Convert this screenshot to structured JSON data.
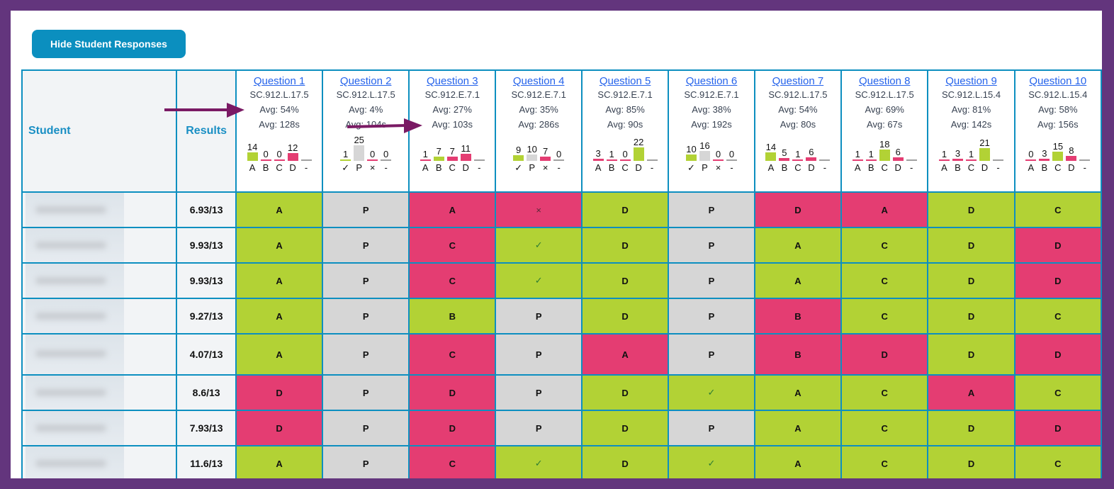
{
  "toolbar": {
    "hide_label": "Hide Student Responses"
  },
  "table": {
    "student_header": "Student",
    "results_header": "Results",
    "colors": {
      "correct": "#b2d235",
      "incorrect": "#e43d72",
      "pending": "#d6d6d6",
      "none": "#a0a0a0"
    },
    "questions": [
      {
        "title": "Question 1",
        "standard": "SC.912.L.17.5",
        "avg_score": "Avg: 54%",
        "avg_time": "Avg: 128s",
        "type": "mc",
        "correct": "A",
        "options": [
          "A",
          "B",
          "C",
          "D",
          "-"
        ],
        "counts": [
          14,
          0,
          0,
          12,
          null
        ]
      },
      {
        "title": "Question 2",
        "standard": "SC.912.L.17.5",
        "avg_score": "Avg: 4%",
        "avg_time": "Avg: 104s",
        "type": "open",
        "options": [
          "✓",
          "P",
          "×",
          "-"
        ],
        "counts": [
          1,
          25,
          0,
          0
        ]
      },
      {
        "title": "Question 3",
        "standard": "SC.912.E.7.1",
        "avg_score": "Avg: 27%",
        "avg_time": "Avg: 103s",
        "type": "mc",
        "correct": "B",
        "options": [
          "A",
          "B",
          "C",
          "D",
          "-"
        ],
        "counts": [
          1,
          7,
          7,
          11,
          null
        ]
      },
      {
        "title": "Question 4",
        "standard": "SC.912.E.7.1",
        "avg_score": "Avg: 35%",
        "avg_time": "Avg: 286s",
        "type": "open",
        "options": [
          "✓",
          "P",
          "×",
          "-"
        ],
        "counts": [
          9,
          10,
          7,
          0
        ]
      },
      {
        "title": "Question 5",
        "standard": "SC.912.E.7.1",
        "avg_score": "Avg: 85%",
        "avg_time": "Avg: 90s",
        "type": "mc",
        "correct": "D",
        "options": [
          "A",
          "B",
          "C",
          "D",
          "-"
        ],
        "counts": [
          3,
          1,
          0,
          22,
          null
        ]
      },
      {
        "title": "Question 6",
        "standard": "SC.912.E.7.1",
        "avg_score": "Avg: 38%",
        "avg_time": "Avg: 192s",
        "type": "open",
        "options": [
          "✓",
          "P",
          "×",
          "-"
        ],
        "counts": [
          10,
          16,
          0,
          0
        ]
      },
      {
        "title": "Question 7",
        "standard": "SC.912.L.17.5",
        "avg_score": "Avg: 54%",
        "avg_time": "Avg: 80s",
        "type": "mc",
        "correct": "A",
        "options": [
          "A",
          "B",
          "C",
          "D",
          "-"
        ],
        "counts": [
          14,
          5,
          1,
          6,
          null
        ]
      },
      {
        "title": "Question 8",
        "standard": "SC.912.L.17.5",
        "avg_score": "Avg: 69%",
        "avg_time": "Avg: 67s",
        "type": "mc",
        "correct": "C",
        "options": [
          "A",
          "B",
          "C",
          "D",
          "-"
        ],
        "counts": [
          1,
          1,
          18,
          6,
          null
        ]
      },
      {
        "title": "Question 9",
        "standard": "SC.912.L.15.4",
        "avg_score": "Avg: 81%",
        "avg_time": "Avg: 142s",
        "type": "mc",
        "correct": "D",
        "options": [
          "A",
          "B",
          "C",
          "D",
          "-"
        ],
        "counts": [
          1,
          3,
          1,
          21,
          null
        ]
      },
      {
        "title": "Question 10",
        "standard": "SC.912.L.15.4",
        "avg_score": "Avg: 58%",
        "avg_time": "Avg: 156s",
        "type": "mc",
        "correct": "C",
        "options": [
          "A",
          "B",
          "C",
          "D",
          "-"
        ],
        "counts": [
          0,
          3,
          15,
          8,
          null
        ]
      }
    ],
    "rows": [
      {
        "result": "6.93/13",
        "answers": [
          "A",
          "P",
          "A",
          "×",
          "D",
          "P",
          "D",
          "A",
          "D",
          "C"
        ]
      },
      {
        "result": "9.93/13",
        "answers": [
          "A",
          "P",
          "C",
          "✓",
          "D",
          "P",
          "A",
          "C",
          "D",
          "D"
        ]
      },
      {
        "result": "9.93/13",
        "answers": [
          "A",
          "P",
          "C",
          "✓",
          "D",
          "P",
          "A",
          "C",
          "D",
          "D"
        ]
      },
      {
        "result": "9.27/13",
        "answers": [
          "A",
          "P",
          "B",
          "P",
          "D",
          "P",
          "B",
          "C",
          "D",
          "C"
        ]
      },
      {
        "result": "4.07/13",
        "answers": [
          "A",
          "P",
          "C",
          "P",
          "A",
          "P",
          "B",
          "D",
          "D",
          "D"
        ]
      },
      {
        "result": "8.6/13",
        "answers": [
          "D",
          "P",
          "D",
          "P",
          "D",
          "✓",
          "A",
          "C",
          "A",
          "C"
        ]
      },
      {
        "result": "7.93/13",
        "answers": [
          "D",
          "P",
          "D",
          "P",
          "D",
          "P",
          "A",
          "C",
          "D",
          "D"
        ]
      },
      {
        "result": "11.6/13",
        "answers": [
          "A",
          "P",
          "C",
          "✓",
          "D",
          "✓",
          "A",
          "C",
          "D",
          "C"
        ]
      }
    ]
  },
  "annotations": {
    "arrow_color": "#7a1a64"
  }
}
